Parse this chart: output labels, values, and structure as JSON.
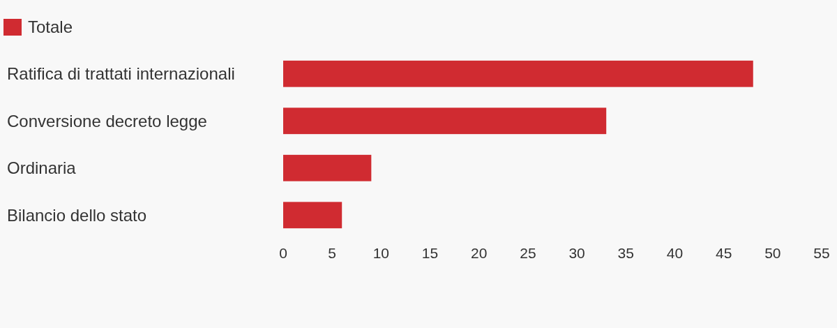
{
  "chart_data": {
    "type": "bar",
    "orientation": "horizontal",
    "categories": [
      "Ratifica di trattati internazionali",
      "Conversione decreto legge",
      "Ordinaria",
      "Bilancio dello stato"
    ],
    "series": [
      {
        "name": "Totale",
        "color": "#d02b31",
        "values": [
          48,
          33,
          9,
          6
        ]
      }
    ],
    "xlim": [
      0,
      55
    ],
    "xticks": [
      0,
      5,
      10,
      15,
      20,
      25,
      30,
      35,
      40,
      45,
      50,
      55
    ],
    "grid": false,
    "legend": "top left"
  }
}
